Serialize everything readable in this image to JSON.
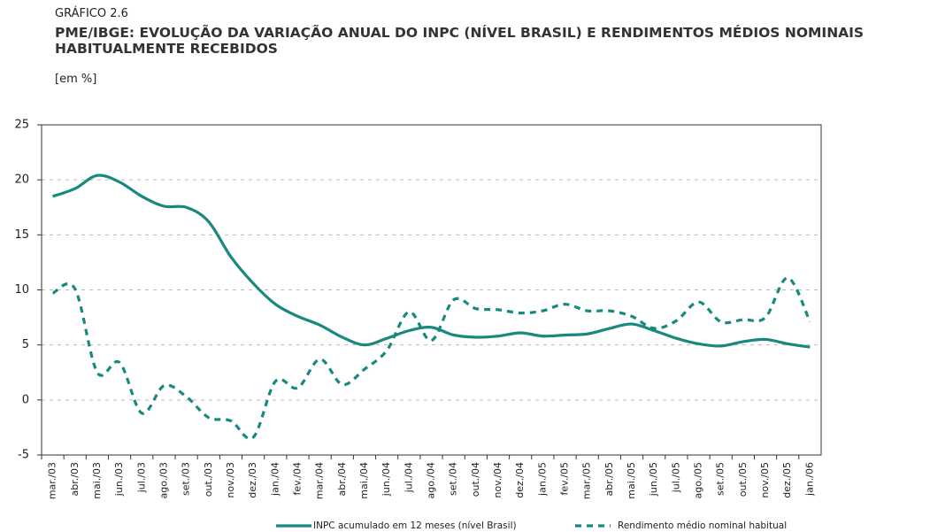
{
  "chart_data": {
    "type": "line",
    "label": "GRÁFICO 2.6",
    "title": "PME/IBGE: EVOLUÇÃO DA VARIAÇÃO ANUAL DO INPC (NÍVEL BRASIL) E RENDIMENTOS MÉDIOS NOMINAIS HABITUALMENTE RECEBIDOS",
    "subtitle": "[em %]",
    "categories": [
      "mar./03",
      "abr./03",
      "mai./03",
      "jun./03",
      "jul./03",
      "ago./03",
      "set./03",
      "out./03",
      "nov./03",
      "dez./03",
      "jan./04",
      "fev./04",
      "mar./04",
      "abr./04",
      "mai./04",
      "jun./04",
      "jul./04",
      "ago./04",
      "set./04",
      "out./04",
      "nov./04",
      "dez./04",
      "jan./05",
      "fev./05",
      "mar./05",
      "abr./05",
      "mai./05",
      "jun./05",
      "jul./05",
      "ago./05",
      "set./05",
      "out./05",
      "nov./05",
      "dez./05",
      "jan./06"
    ],
    "series": [
      {
        "name": "INPC acumulado em 12 meses (nível Brasil)",
        "color": "#17897f",
        "dash": false,
        "values": [
          18.5,
          19.2,
          20.4,
          19.8,
          18.5,
          17.6,
          17.5,
          16.2,
          13.0,
          10.6,
          8.7,
          7.6,
          6.8,
          5.7,
          5.0,
          5.6,
          6.3,
          6.6,
          5.9,
          5.7,
          5.8,
          6.1,
          5.8,
          5.9,
          6.0,
          6.5,
          6.9,
          6.3,
          5.6,
          5.1,
          4.9,
          5.3,
          5.5,
          5.1,
          4.8
        ]
      },
      {
        "name": "Rendimento médio nominal habitual",
        "color": "#17897f",
        "dash": true,
        "values": [
          9.7,
          10.1,
          2.5,
          3.4,
          -1.2,
          1.3,
          0.3,
          -1.6,
          -1.9,
          -3.4,
          1.7,
          1.1,
          3.7,
          1.4,
          2.8,
          4.5,
          8.0,
          5.4,
          9.1,
          8.3,
          8.2,
          7.9,
          8.1,
          8.7,
          8.1,
          8.1,
          7.6,
          6.5,
          7.2,
          8.9,
          7.1,
          7.3,
          7.5,
          11.1,
          7.1
        ]
      }
    ],
    "ylim": [
      -5,
      25
    ],
    "yticks": [
      -5,
      0,
      5,
      10,
      15,
      20,
      25
    ],
    "grid": true
  }
}
